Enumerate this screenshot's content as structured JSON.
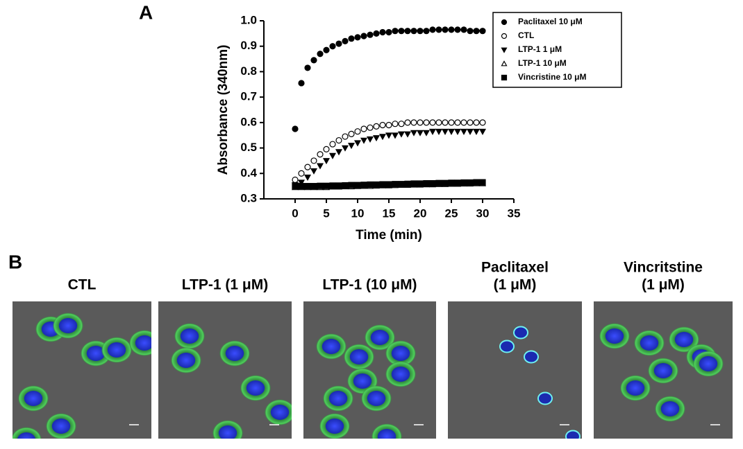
{
  "panel_labels": [
    "A",
    "B"
  ],
  "chart_data": {
    "type": "scatter",
    "x_label": "Time (min)",
    "y_label": "Absorbance (340nm)",
    "x": [
      0,
      1,
      2,
      3,
      4,
      5,
      6,
      7,
      8,
      9,
      10,
      11,
      12,
      13,
      14,
      15,
      16,
      17,
      18,
      19,
      20,
      21,
      22,
      23,
      24,
      25,
      26,
      27,
      28,
      29,
      30
    ],
    "xlim": [
      -5,
      35
    ],
    "xticks": [
      0,
      5,
      10,
      15,
      20,
      25,
      30,
      35
    ],
    "ylim": [
      0.3,
      1.0
    ],
    "yticks": [
      0.3,
      0.4,
      0.5,
      0.6,
      0.7,
      0.8,
      0.9,
      {
        "value": 1.0,
        "label": "1.0"
      }
    ],
    "legend": "top-right",
    "series": [
      {
        "name": "Paclitaxel 10 μM",
        "color": "#000000",
        "marker": "circle",
        "filled": true,
        "values": [
          0.575,
          0.755,
          0.815,
          0.845,
          0.87,
          0.885,
          0.9,
          0.91,
          0.92,
          0.93,
          0.935,
          0.94,
          0.945,
          0.95,
          0.955,
          0.955,
          0.96,
          0.96,
          0.96,
          0.96,
          0.96,
          0.96,
          0.965,
          0.965,
          0.965,
          0.965,
          0.965,
          0.965,
          0.96,
          0.96,
          0.96
        ]
      },
      {
        "name": "CTL",
        "color": "#000000",
        "marker": "circle",
        "filled": false,
        "values": [
          0.375,
          0.4,
          0.425,
          0.45,
          0.475,
          0.495,
          0.515,
          0.53,
          0.545,
          0.555,
          0.565,
          0.575,
          0.58,
          0.585,
          0.59,
          0.59,
          0.595,
          0.595,
          0.6,
          0.6,
          0.6,
          0.6,
          0.6,
          0.6,
          0.6,
          0.6,
          0.6,
          0.6,
          0.6,
          0.6,
          0.6
        ]
      },
      {
        "name": "LTP-1 1 μM",
        "color": "#000000",
        "marker": "triangle-down",
        "filled": true,
        "values": [
          0.355,
          0.365,
          0.385,
          0.41,
          0.43,
          0.45,
          0.47,
          0.485,
          0.5,
          0.51,
          0.52,
          0.53,
          0.535,
          0.54,
          0.545,
          0.55,
          0.55,
          0.555,
          0.555,
          0.56,
          0.56,
          0.56,
          0.565,
          0.565,
          0.565,
          0.565,
          0.565,
          0.565,
          0.565,
          0.565,
          0.565
        ]
      },
      {
        "name": "LTP-1 10 μM",
        "color": "#000000",
        "marker": "triangle-up",
        "filled": false,
        "values": [
          0.345,
          0.345,
          0.345,
          0.345,
          0.345,
          0.345,
          0.347,
          0.347,
          0.348,
          0.348,
          0.349,
          0.35,
          0.35,
          0.351,
          0.352,
          0.352,
          0.353,
          0.354,
          0.354,
          0.355,
          0.355,
          0.356,
          0.356,
          0.357,
          0.357,
          0.358,
          0.358,
          0.359,
          0.359,
          0.36,
          0.36
        ]
      },
      {
        "name": "Vincristine 10 μM",
        "color": "#000000",
        "marker": "square",
        "filled": true,
        "values": [
          0.35,
          0.35,
          0.35,
          0.35,
          0.351,
          0.351,
          0.352,
          0.352,
          0.353,
          0.354,
          0.354,
          0.355,
          0.356,
          0.356,
          0.357,
          0.357,
          0.358,
          0.358,
          0.359,
          0.36,
          0.36,
          0.361,
          0.361,
          0.362,
          0.362,
          0.363,
          0.363,
          0.364,
          0.364,
          0.365,
          0.365
        ]
      }
    ]
  },
  "images": [
    {
      "title_lines": [
        "CTL"
      ]
    },
    {
      "title_lines": [
        "LTP-1 (1 μM)"
      ]
    },
    {
      "title_lines": [
        "LTP-1 (10 μM)"
      ]
    },
    {
      "title_lines": [
        "Paclitaxel",
        "(1 μM)"
      ]
    },
    {
      "title_lines": [
        "Vincritstine",
        "(1 μM)"
      ]
    }
  ]
}
